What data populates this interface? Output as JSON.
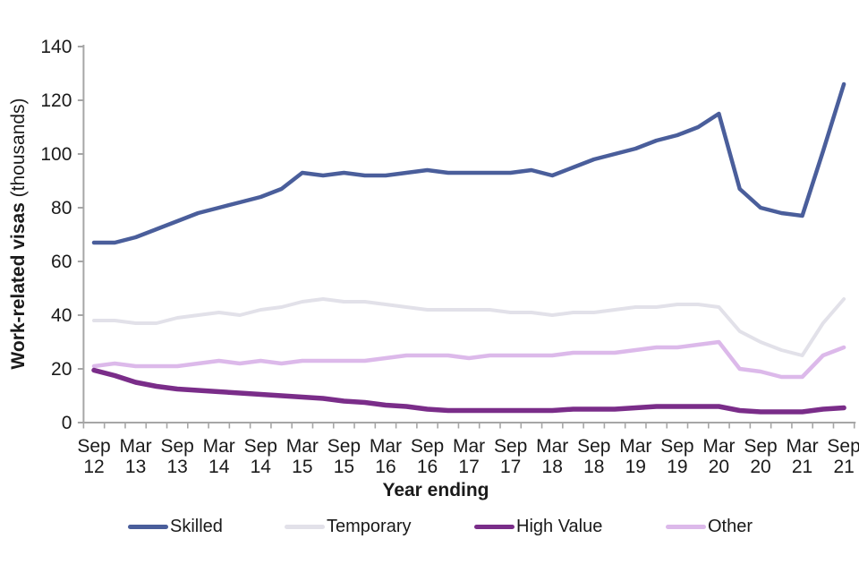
{
  "page": {
    "background": "#ffffff"
  },
  "chart_data": {
    "type": "line",
    "title": "",
    "ylabel_bold": "Work-related visas",
    "ylabel_units": " (thousands)",
    "xlabel": "Year ending",
    "ylim": [
      0,
      140
    ],
    "yticks": [
      0,
      20,
      40,
      60,
      80,
      100,
      120,
      140
    ],
    "grid": false,
    "legend_position": "bottom",
    "n_points": 37,
    "points_per_label": 2,
    "x_tick_labels": [
      "Sep 12",
      "Mar 13",
      "Sep 13",
      "Mar 14",
      "Sep 14",
      "Mar 15",
      "Sep 15",
      "Mar 16",
      "Sep 16",
      "Mar 17",
      "Sep 17",
      "Mar 18",
      "Sep 18",
      "Mar 19",
      "Sep 19",
      "Mar 20",
      "Sep 20",
      "Mar 21",
      "Sep 21"
    ],
    "axis_color": "#a6a6a6",
    "text_color": "#1a1a1a",
    "series": [
      {
        "name": "Skilled",
        "color": "#4a5e9b",
        "stroke_width": 4.5,
        "values": [
          67,
          67,
          69,
          72,
          75,
          78,
          80,
          82,
          84,
          87,
          93,
          92,
          93,
          92,
          92,
          93,
          94,
          93,
          93,
          93,
          93,
          94,
          92,
          95,
          98,
          100,
          102,
          105,
          107,
          110,
          115,
          87,
          80,
          78,
          77,
          101,
          126
        ]
      },
      {
        "name": "Temporary",
        "color": "#e2e1e9",
        "stroke_width": 4,
        "values": [
          38,
          38,
          37,
          37,
          39,
          40,
          41,
          40,
          42,
          43,
          45,
          46,
          45,
          45,
          44,
          43,
          42,
          42,
          42,
          42,
          41,
          41,
          40,
          41,
          41,
          42,
          43,
          43,
          44,
          44,
          43,
          34,
          30,
          27,
          25,
          37,
          46
        ]
      },
      {
        "name": "High Value",
        "color": "#7a2d89",
        "stroke_width": 5.5,
        "values": [
          19.5,
          17.5,
          15,
          13.5,
          12.5,
          12,
          11.5,
          11,
          10.5,
          10,
          9.5,
          9,
          8,
          7.5,
          6.5,
          6,
          5,
          4.5,
          4.5,
          4.5,
          4.5,
          4.5,
          4.5,
          5,
          5,
          5,
          5.5,
          6,
          6,
          6,
          6,
          4.5,
          4,
          4,
          4,
          5,
          5.5
        ]
      },
      {
        "name": "Other",
        "color": "#dcb9ea",
        "stroke_width": 4.5,
        "values": [
          21,
          22,
          21,
          21,
          21,
          22,
          23,
          22,
          23,
          22,
          23,
          23,
          23,
          23,
          24,
          25,
          25,
          25,
          24,
          25,
          25,
          25,
          25,
          26,
          26,
          26,
          27,
          28,
          28,
          29,
          30,
          20,
          19,
          17,
          17,
          25,
          28
        ]
      }
    ]
  }
}
